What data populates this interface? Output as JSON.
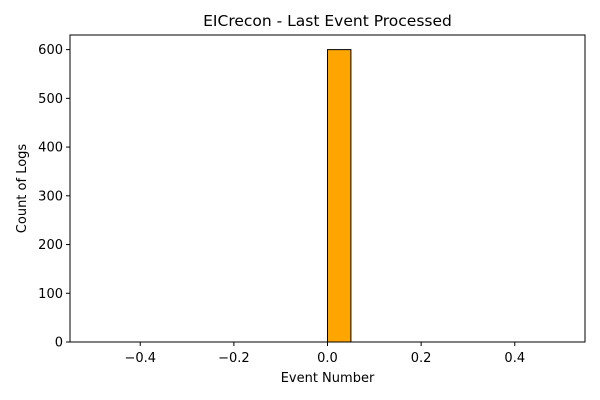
{
  "chart_data": {
    "type": "bar",
    "title": "EICrecon - Last Event Processed",
    "xlabel": "Event Number",
    "ylabel": "Count of Logs",
    "xlim": [
      -0.55,
      0.55
    ],
    "ylim": [
      0,
      630
    ],
    "x_ticks": [
      -0.4,
      -0.2,
      0.0,
      0.2,
      0.4
    ],
    "x_tick_labels": [
      "−0.4",
      "−0.2",
      "0.0",
      "0.2",
      "0.4"
    ],
    "y_ticks": [
      0,
      100,
      200,
      300,
      400,
      500,
      600
    ],
    "y_tick_labels": [
      "0",
      "100",
      "200",
      "300",
      "400",
      "500",
      "600"
    ],
    "bins": [
      {
        "start": -0.5,
        "end": -0.45,
        "count": 0
      },
      {
        "start": -0.45,
        "end": -0.4,
        "count": 0
      },
      {
        "start": -0.4,
        "end": -0.35,
        "count": 0
      },
      {
        "start": -0.35,
        "end": -0.3,
        "count": 0
      },
      {
        "start": -0.3,
        "end": -0.25,
        "count": 0
      },
      {
        "start": -0.25,
        "end": -0.2,
        "count": 0
      },
      {
        "start": -0.2,
        "end": -0.15,
        "count": 0
      },
      {
        "start": -0.15,
        "end": -0.1,
        "count": 0
      },
      {
        "start": -0.1,
        "end": -0.05,
        "count": 0
      },
      {
        "start": -0.05,
        "end": 0.0,
        "count": 0
      },
      {
        "start": 0.0,
        "end": 0.05,
        "count": 600
      },
      {
        "start": 0.05,
        "end": 0.1,
        "count": 0
      },
      {
        "start": 0.1,
        "end": 0.15,
        "count": 0
      },
      {
        "start": 0.15,
        "end": 0.2,
        "count": 0
      },
      {
        "start": 0.2,
        "end": 0.25,
        "count": 0
      },
      {
        "start": 0.25,
        "end": 0.3,
        "count": 0
      },
      {
        "start": 0.3,
        "end": 0.35,
        "count": 0
      },
      {
        "start": 0.35,
        "end": 0.4,
        "count": 0
      },
      {
        "start": 0.4,
        "end": 0.45,
        "count": 0
      },
      {
        "start": 0.45,
        "end": 0.5,
        "count": 0
      }
    ],
    "bar_color": "#ffa500",
    "edge_color": "#000000",
    "grid": false,
    "legend": "none"
  }
}
